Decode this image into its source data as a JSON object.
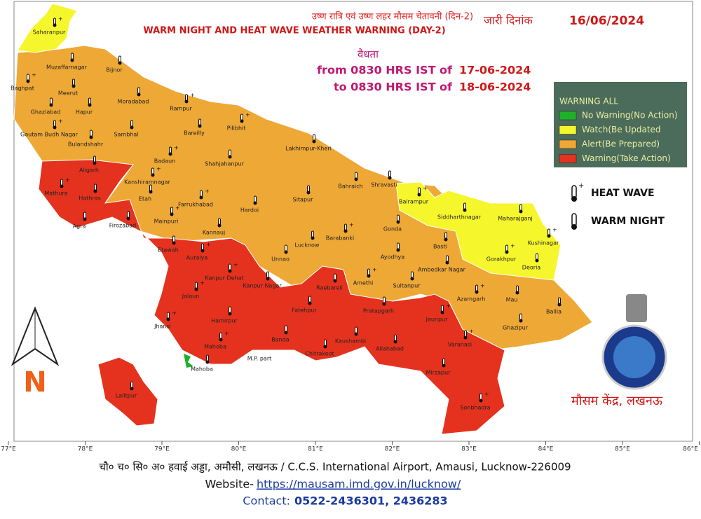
{
  "header": {
    "title_hindi": "उष्ण रात्रि एवं उष्ण लहर मौसम चेतावनी (दिन-2)",
    "title": "WARM NIGHT AND HEAT WAVE WEATHER WARNING (DAY-2)",
    "issued_label": "जारी दिनांक",
    "issued_date": "16/06/2024",
    "validity_label": "वैधता",
    "from_label": "from 0830 HRS IST of",
    "from_date": "17-06-2024",
    "to_label": "to 0830 HRS IST of",
    "to_date": "18-06-2024"
  },
  "legend": {
    "title": "WARNING ALL",
    "items": [
      {
        "label": "No Warning(No Action)",
        "color": "#1fb02a"
      },
      {
        "label": "Watch(Be Updated",
        "color": "#f6f62c"
      },
      {
        "label": "Alert(Be Prepared)",
        "color": "#eea836"
      },
      {
        "label": "Warning(Take Action)",
        "color": "#e5321f"
      }
    ]
  },
  "symbols": [
    "HEAT WAVE",
    "WARM NIGHT"
  ],
  "north": "N",
  "office": "मौसम केंद्र, लखनऊ",
  "longitudes": [
    "77°E",
    "78°E",
    "79°E",
    "80°E",
    "81°E",
    "82°E",
    "83°E",
    "84°E",
    "85°E",
    "86°E"
  ],
  "districts": [
    "Saharanpur",
    "Muzaffarnagar",
    "Bijnor",
    "Baghpat",
    "Meerut",
    "Moradabad",
    "Rampur",
    "Ghaziabad",
    "Hapur",
    "Gautam Budh Nagar",
    "Sambhal",
    "Bareilly",
    "Pilibhit",
    "Bulandshahr",
    "Lakhimpur-Kheri",
    "Badaun",
    "Shahjahanpur",
    "Aligarh",
    "Kanshiramnagar",
    "Bahraich",
    "Shravasti",
    "Mathura",
    "Hathras",
    "Etah",
    "Farrukhabad",
    "Hardoi",
    "Sitapur",
    "Balrampur",
    "Siddharthnagar",
    "Maharajganj",
    "Kushinagar",
    "Agra",
    "Firozabad",
    "Mainpuri",
    "Kannauj",
    "Gonda",
    "Barabanki",
    "Lucknow",
    "Basti",
    "Gorakhpur",
    "Deoria",
    "Etawah",
    "Auraiya",
    "Unnao",
    "Ayodhya",
    "Kanpur Dehat",
    "Kanpur Nagar",
    "Raebareli",
    "Amethi",
    "Ambedkar Nagar",
    "Sultanpur",
    "Azamgarh",
    "Mau",
    "Ballia",
    "Jalaun",
    "Fatehpur",
    "Pratapgarh",
    "Jaunpur",
    "Ghazipur",
    "Hamirpur",
    "Jhansi",
    "Banda",
    "Kaushambi",
    "Varanasi",
    "Allahabad",
    "Chitrakoot",
    "Mahoba",
    "Mirzapur",
    "Lalitpur",
    "Sonbhadra",
    "M.P. part",
    "Mahoba"
  ],
  "footer": {
    "address": "चौ० च० सि० अ० हवाई अड्डा, अमौसी, लखनऊ / C.C.S. International Airport, Amausi, Lucknow-226009",
    "website_label": "Website-",
    "website": "https://mausam.imd.gov.in/lucknow/",
    "contact_label": "Contact:",
    "contact": "0522-2436301, 2436283"
  }
}
